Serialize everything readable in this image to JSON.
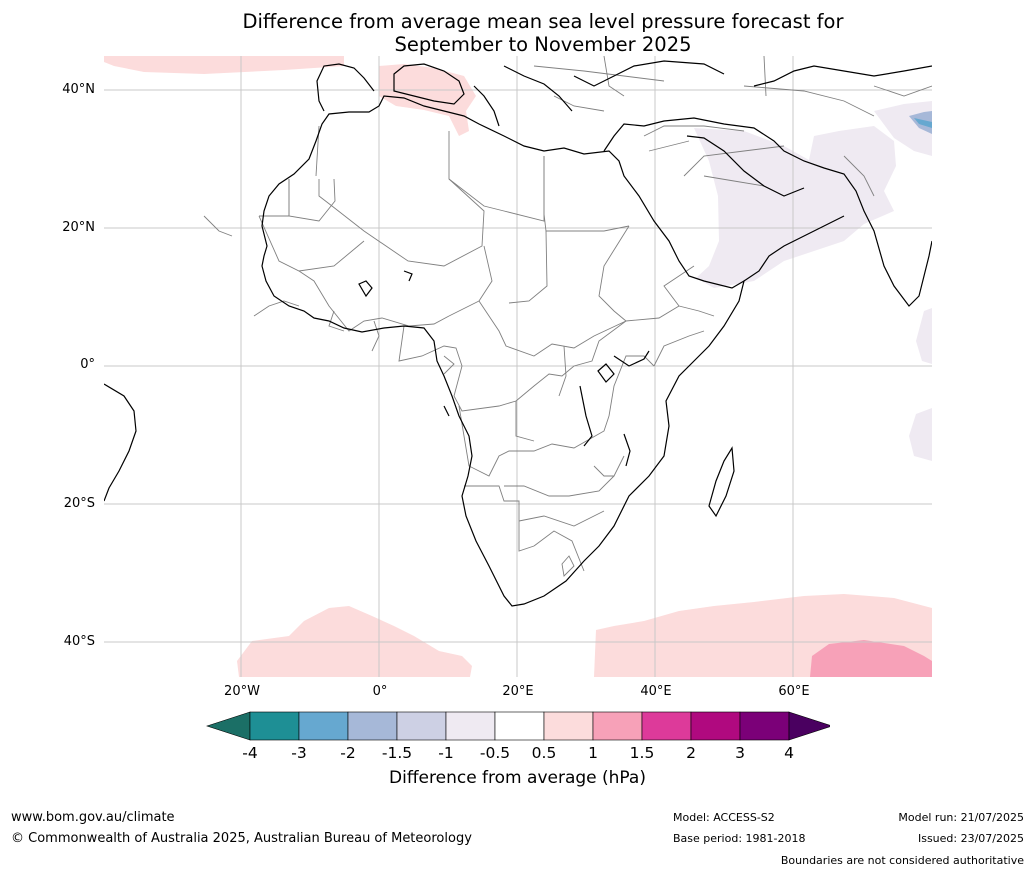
{
  "title_line1": "Difference from average mean sea level pressure forecast for",
  "title_line2": "September to November 2025",
  "lat_labels": [
    "40°N",
    "20°N",
    "0°",
    "20°S",
    "40°S"
  ],
  "lon_labels": [
    "20°W",
    "0°",
    "20°E",
    "40°E",
    "60°E"
  ],
  "colorbar": {
    "ticks": [
      "-4",
      "-3",
      "-2",
      "-1.5",
      "-1",
      "-0.5",
      "0.5",
      "1",
      "1.5",
      "2",
      "3",
      "4"
    ],
    "colors": [
      "#1b6f66",
      "#1e8f95",
      "#66a8d0",
      "#a6b8d8",
      "#cdd0e4",
      "#efeaf2",
      "#ffffff",
      "#fcdcdc",
      "#f7a1b8",
      "#dd3a9a",
      "#b0097f",
      "#7b0078",
      "#4a0060"
    ],
    "label": "Difference from average (hPa)"
  },
  "colors": {
    "land_border": "#000000",
    "country_border": "#808080",
    "grid": "#c8c8c8",
    "pos_light": "#fcdcdc",
    "pos_medium": "#f7a1b8",
    "neg_light": "#efeaf2",
    "neg_medium": "#66a8d0"
  },
  "footer": {
    "website": "www.bom.gov.au/climate",
    "copyright": "© Commonwealth of Australia 2025, Australian Bureau of Meteorology",
    "model": "Model: ACCESS-S2",
    "base_period": "Base period: 1981-2018",
    "model_run": "Model run: 21/07/2025",
    "issued": "Issued: 23/07/2025",
    "disclaimer": "Boundaries are not considered authoritative"
  }
}
